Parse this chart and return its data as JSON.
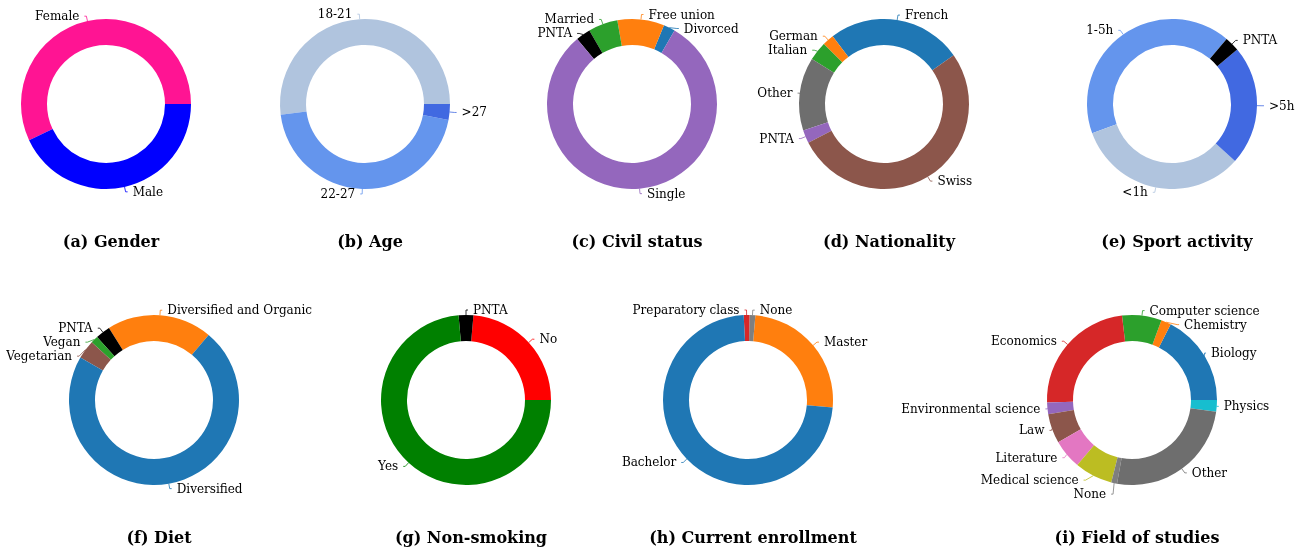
{
  "chart_data": [
    {
      "type": "donut",
      "title": "(a) Gender",
      "categories": [
        "Female",
        "Male"
      ],
      "values": [
        57,
        43
      ],
      "colors": [
        "#ff1493",
        "#0000ff"
      ]
    },
    {
      "type": "donut",
      "title": "(b) Age",
      "categories": [
        "18-21",
        "22-27",
        ">27"
      ],
      "values": [
        52,
        45,
        3
      ],
      "colors": [
        "#b0c4de",
        "#6495ed",
        "#4169e1"
      ]
    },
    {
      "type": "donut",
      "title": "(c) Civil status",
      "categories": [
        "Divorced",
        "Free union",
        "Married",
        "PNTA",
        "Single"
      ],
      "values": [
        2.2,
        8.9,
        5.6,
        2.8,
        80.5
      ],
      "colors": [
        "#1f77b4",
        "#ff7f0e",
        "#2ca02c",
        "#000000",
        "#9467bd"
      ]
    },
    {
      "type": "donut",
      "title": "(d) Nationality",
      "categories": [
        "French",
        "German",
        "Italian",
        "Other",
        "PNTA",
        "Swiss"
      ],
      "values": [
        25.6,
        2.2,
        3.6,
        13.9,
        2.5,
        52.2
      ],
      "colors": [
        "#1f77b4",
        "#ff7f0e",
        "#2ca02c",
        "#6e6e6e",
        "#9467bd",
        "#8c564b"
      ]
    },
    {
      "type": "donut",
      "title": "(e) Sport activity",
      "categories": [
        "1-5h",
        "<1h",
        ">5h",
        "PNTA"
      ],
      "values": [
        41.7,
        32.7,
        22.8,
        2.8
      ],
      "colors": [
        "#6495ed",
        "#b0c4de",
        "#4169e1",
        "#000000"
      ]
    },
    {
      "type": "donut",
      "title": "(f) Diet",
      "categories": [
        "Diversified and Organic",
        "PNTA",
        "Vegan",
        "Vegetarian",
        "Diversified"
      ],
      "values": [
        20,
        2.8,
        1.4,
        3.6,
        72.2
      ],
      "colors": [
        "#ff7f0e",
        "#000000",
        "#2ca02c",
        "#8c564b",
        "#1f77b4"
      ]
    },
    {
      "type": "donut",
      "title": "(g) Non-smoking",
      "categories": [
        "No",
        "PNTA",
        "Yes"
      ],
      "values": [
        23.6,
        2.8,
        73.6
      ],
      "colors": [
        "#ff0000",
        "#000000",
        "#008000"
      ]
    },
    {
      "type": "donut",
      "title": "(h) Current enrollment",
      "categories": [
        "Master",
        "None",
        "Preparatory class",
        "Bachelor"
      ],
      "values": [
        25,
        1.1,
        1.1,
        72.8
      ],
      "colors": [
        "#ff7f0e",
        "#7f7f7f",
        "#d62728",
        "#1f77b4"
      ]
    },
    {
      "type": "donut",
      "title": "(i) Field of studies",
      "categories": [
        "Physics",
        "Biology",
        "Chemistry",
        "Computer science",
        "Economics",
        "Environmental science",
        "Law",
        "Literature",
        "Medical science",
        "None",
        "Other"
      ],
      "values": [
        2.2,
        17.5,
        1.9,
        7.5,
        23.6,
        2.2,
        5.6,
        5.6,
        7.2,
        1.1,
        25.6
      ],
      "colors": [
        "#17becf",
        "#1f77b4",
        "#ff7f0e",
        "#2ca02c",
        "#d62728",
        "#9467bd",
        "#8c564b",
        "#e377c2",
        "#bcbd22",
        "#7f7f7f",
        "#6e6e6e"
      ]
    }
  ]
}
